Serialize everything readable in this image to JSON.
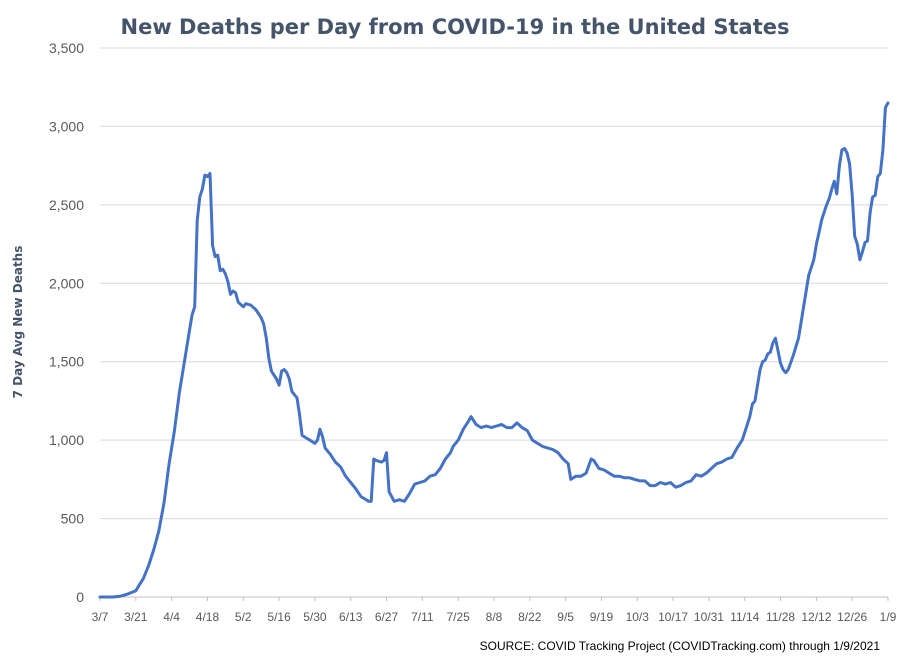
{
  "chart_data": {
    "type": "line",
    "title": "New Deaths per Day from COVID-19 in the United States",
    "xlabel": "",
    "ylabel": "7 Day Avg New Deaths",
    "source": "SOURCE: COVID Tracking Project (COVIDTracking.com) through 1/9/2021",
    "ylim": [
      0,
      3500
    ],
    "yticks": [
      0,
      500,
      1000,
      1500,
      2000,
      2500,
      3000,
      3500
    ],
    "ytick_labels": [
      "0",
      "500",
      "1,000",
      "1,500",
      "2,000",
      "2,500",
      "3,000",
      "3,500"
    ],
    "xlim": [
      "2020-03-07",
      "2021-01-09"
    ],
    "xticks": [
      "2020-03-07",
      "2020-03-21",
      "2020-04-04",
      "2020-04-18",
      "2020-05-02",
      "2020-05-16",
      "2020-05-30",
      "2020-06-13",
      "2020-06-27",
      "2020-07-11",
      "2020-07-25",
      "2020-08-08",
      "2020-08-22",
      "2020-09-05",
      "2020-09-19",
      "2020-10-03",
      "2020-10-17",
      "2020-10-31",
      "2020-11-14",
      "2020-11-28",
      "2020-12-12",
      "2020-12-26",
      "2021-01-09"
    ],
    "xtick_labels": [
      "3/7",
      "3/21",
      "4/4",
      "4/18",
      "5/2",
      "5/16",
      "5/30",
      "6/13",
      "6/27",
      "7/11",
      "7/25",
      "8/8",
      "8/22",
      "9/5",
      "9/19",
      "10/3",
      "10/17",
      "10/31",
      "11/14",
      "11/28",
      "12/12",
      "12/26",
      "1/9"
    ],
    "grid": true,
    "line_color": "#4472c4",
    "series": [
      {
        "x": [
          "2020-03-07",
          "2020-03-12",
          "2020-03-15",
          "2020-03-18",
          "2020-03-21",
          "2020-03-24",
          "2020-03-26",
          "2020-03-28",
          "2020-03-30",
          "2020-04-01",
          "2020-04-03",
          "2020-04-05",
          "2020-04-07",
          "2020-04-09",
          "2020-04-11",
          "2020-04-12",
          "2020-04-13",
          "2020-04-14",
          "2020-04-15",
          "2020-04-16",
          "2020-04-17",
          "2020-04-18",
          "2020-04-19",
          "2020-04-20",
          "2020-04-21",
          "2020-04-22",
          "2020-04-23",
          "2020-04-24",
          "2020-04-25",
          "2020-04-26",
          "2020-04-27",
          "2020-04-28",
          "2020-04-29",
          "2020-04-30",
          "2020-05-02",
          "2020-05-03",
          "2020-05-05",
          "2020-05-07",
          "2020-05-09",
          "2020-05-10",
          "2020-05-11",
          "2020-05-12",
          "2020-05-13",
          "2020-05-15",
          "2020-05-16",
          "2020-05-17",
          "2020-05-18",
          "2020-05-19",
          "2020-05-20",
          "2020-05-21",
          "2020-05-22",
          "2020-05-23",
          "2020-05-24",
          "2020-05-25",
          "2020-05-26",
          "2020-05-28",
          "2020-05-30",
          "2020-05-31",
          "2020-06-01",
          "2020-06-02",
          "2020-06-03",
          "2020-06-05",
          "2020-06-07",
          "2020-06-09",
          "2020-06-11",
          "2020-06-13",
          "2020-06-15",
          "2020-06-17",
          "2020-06-19",
          "2020-06-20",
          "2020-06-21",
          "2020-06-22",
          "2020-06-23",
          "2020-06-25",
          "2020-06-26",
          "2020-06-27",
          "2020-06-28",
          "2020-06-29",
          "2020-06-30",
          "2020-07-02",
          "2020-07-04",
          "2020-07-06",
          "2020-07-08",
          "2020-07-10",
          "2020-07-12",
          "2020-07-14",
          "2020-07-16",
          "2020-07-18",
          "2020-07-20",
          "2020-07-22",
          "2020-07-23",
          "2020-07-25",
          "2020-07-27",
          "2020-07-29",
          "2020-07-30",
          "2020-08-01",
          "2020-08-03",
          "2020-08-05",
          "2020-08-07",
          "2020-08-09",
          "2020-08-11",
          "2020-08-13",
          "2020-08-15",
          "2020-08-17",
          "2020-08-19",
          "2020-08-21",
          "2020-08-23",
          "2020-08-25",
          "2020-08-27",
          "2020-08-29",
          "2020-08-31",
          "2020-09-02",
          "2020-09-04",
          "2020-09-06",
          "2020-09-07",
          "2020-09-09",
          "2020-09-11",
          "2020-09-13",
          "2020-09-15",
          "2020-09-16",
          "2020-09-18",
          "2020-09-20",
          "2020-09-22",
          "2020-09-24",
          "2020-09-26",
          "2020-09-28",
          "2020-09-30",
          "2020-10-02",
          "2020-10-04",
          "2020-10-06",
          "2020-10-08",
          "2020-10-10",
          "2020-10-12",
          "2020-10-14",
          "2020-10-16",
          "2020-10-18",
          "2020-10-20",
          "2020-10-22",
          "2020-10-24",
          "2020-10-26",
          "2020-10-28",
          "2020-10-30",
          "2020-11-01",
          "2020-11-03",
          "2020-11-05",
          "2020-11-07",
          "2020-11-09",
          "2020-11-11",
          "2020-11-13",
          "2020-11-15",
          "2020-11-16",
          "2020-11-17",
          "2020-11-18",
          "2020-11-19",
          "2020-11-20",
          "2020-11-21",
          "2020-11-22",
          "2020-11-23",
          "2020-11-24",
          "2020-11-25",
          "2020-11-26",
          "2020-11-27",
          "2020-11-28",
          "2020-11-29",
          "2020-11-30",
          "2020-12-01",
          "2020-12-03",
          "2020-12-05",
          "2020-12-07",
          "2020-12-09",
          "2020-12-11",
          "2020-12-12",
          "2020-12-13",
          "2020-12-14",
          "2020-12-15",
          "2020-12-16",
          "2020-12-17",
          "2020-12-18",
          "2020-12-19",
          "2020-12-20",
          "2020-12-21",
          "2020-12-22",
          "2020-12-23",
          "2020-12-24",
          "2020-12-25",
          "2020-12-26",
          "2020-12-27",
          "2020-12-28",
          "2020-12-29",
          "2020-12-30",
          "2020-12-31",
          "2021-01-01",
          "2021-01-02",
          "2021-01-03",
          "2021-01-04",
          "2021-01-05",
          "2021-01-06",
          "2021-01-07",
          "2021-01-08",
          "2021-01-09"
        ],
        "y": [
          0,
          0,
          5,
          20,
          40,
          120,
          200,
          300,
          420,
          600,
          850,
          1050,
          1300,
          1500,
          1700,
          1800,
          1850,
          2400,
          2550,
          2600,
          2690,
          2680,
          2700,
          2240,
          2170,
          2180,
          2080,
          2090,
          2060,
          2010,
          1930,
          1950,
          1940,
          1880,
          1850,
          1870,
          1860,
          1830,
          1780,
          1740,
          1650,
          1520,
          1440,
          1390,
          1350,
          1440,
          1450,
          1430,
          1390,
          1310,
          1290,
          1270,
          1160,
          1030,
          1020,
          1000,
          980,
          1000,
          1070,
          1020,
          950,
          910,
          860,
          830,
          770,
          730,
          690,
          640,
          620,
          610,
          610,
          880,
          870,
          860,
          870,
          920,
          670,
          640,
          610,
          620,
          610,
          660,
          720,
          730,
          740,
          770,
          780,
          820,
          880,
          920,
          960,
          1000,
          1070,
          1120,
          1150,
          1100,
          1080,
          1090,
          1080,
          1090,
          1100,
          1080,
          1080,
          1110,
          1080,
          1060,
          1000,
          980,
          960,
          950,
          940,
          920,
          880,
          850,
          750,
          770,
          770,
          790,
          880,
          870,
          820,
          810,
          790,
          770,
          770,
          760,
          760,
          750,
          740,
          740,
          710,
          710,
          730,
          720,
          730,
          700,
          710,
          730,
          740,
          780,
          770,
          790,
          820,
          850,
          860,
          880,
          890,
          950,
          1000,
          1100,
          1150,
          1230,
          1250,
          1350,
          1450,
          1500,
          1510,
          1550,
          1560,
          1620,
          1650,
          1570,
          1490,
          1450,
          1430,
          1450,
          1540,
          1650,
          1850,
          2050,
          2150,
          2250,
          2320,
          2400,
          2450,
          2500,
          2540,
          2600,
          2650,
          2570,
          2750,
          2850,
          2860,
          2830,
          2760,
          2560,
          2300,
          2250,
          2150,
          2200,
          2260,
          2270,
          2450,
          2550,
          2560,
          2680,
          2700,
          2850,
          3120,
          3150
        ]
      }
    ]
  }
}
